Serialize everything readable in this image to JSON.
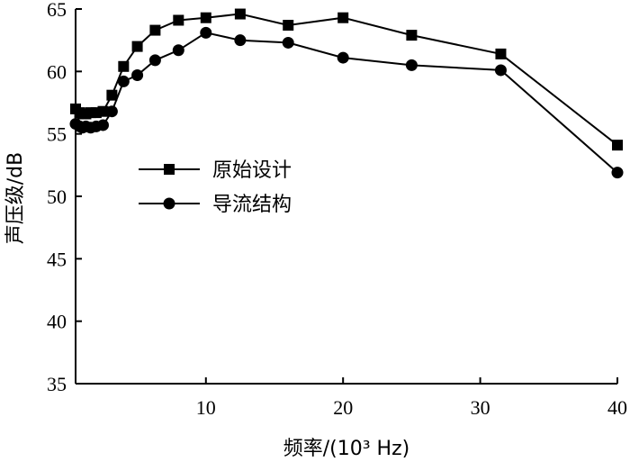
{
  "chart_data": {
    "type": "line",
    "xlabel": "频率/(10³ Hz)",
    "ylabel": "声压级/dB",
    "xlim": [
      0.5,
      40
    ],
    "ylim": [
      35,
      65
    ],
    "xticks": [
      10,
      20,
      30,
      40
    ],
    "yticks": [
      35,
      40,
      45,
      50,
      55,
      60,
      65
    ],
    "grid": false,
    "legend_position": "center-left",
    "series": [
      {
        "name": "原始设计",
        "marker": "square",
        "color": "#000000",
        "points": [
          [
            0.5,
            57.0
          ],
          [
            0.8,
            56.7
          ],
          [
            1.0,
            56.6
          ],
          [
            1.25,
            56.6
          ],
          [
            1.6,
            56.7
          ],
          [
            2.0,
            56.7
          ],
          [
            2.5,
            56.8
          ],
          [
            3.15,
            58.1
          ],
          [
            4.0,
            60.4
          ],
          [
            5.0,
            62.0
          ],
          [
            6.3,
            63.3
          ],
          [
            8.0,
            64.1
          ],
          [
            10.0,
            64.3
          ],
          [
            12.5,
            64.6
          ],
          [
            16.0,
            63.7
          ],
          [
            20.0,
            64.3
          ],
          [
            25.0,
            62.9
          ],
          [
            31.5,
            61.4
          ],
          [
            40.0,
            54.1
          ]
        ]
      },
      {
        "name": "导流结构",
        "marker": "circle",
        "color": "#000000",
        "points": [
          [
            0.5,
            55.8
          ],
          [
            0.8,
            55.6
          ],
          [
            1.0,
            55.5
          ],
          [
            1.25,
            55.6
          ],
          [
            1.6,
            55.5
          ],
          [
            2.0,
            55.6
          ],
          [
            2.5,
            55.7
          ],
          [
            3.15,
            56.8
          ],
          [
            4.0,
            59.2
          ],
          [
            5.0,
            59.7
          ],
          [
            6.3,
            60.9
          ],
          [
            8.0,
            61.7
          ],
          [
            10.0,
            63.1
          ],
          [
            12.5,
            62.5
          ],
          [
            16.0,
            62.3
          ],
          [
            20.0,
            61.1
          ],
          [
            25.0,
            60.5
          ],
          [
            31.5,
            60.1
          ],
          [
            40.0,
            51.9
          ]
        ]
      }
    ]
  }
}
